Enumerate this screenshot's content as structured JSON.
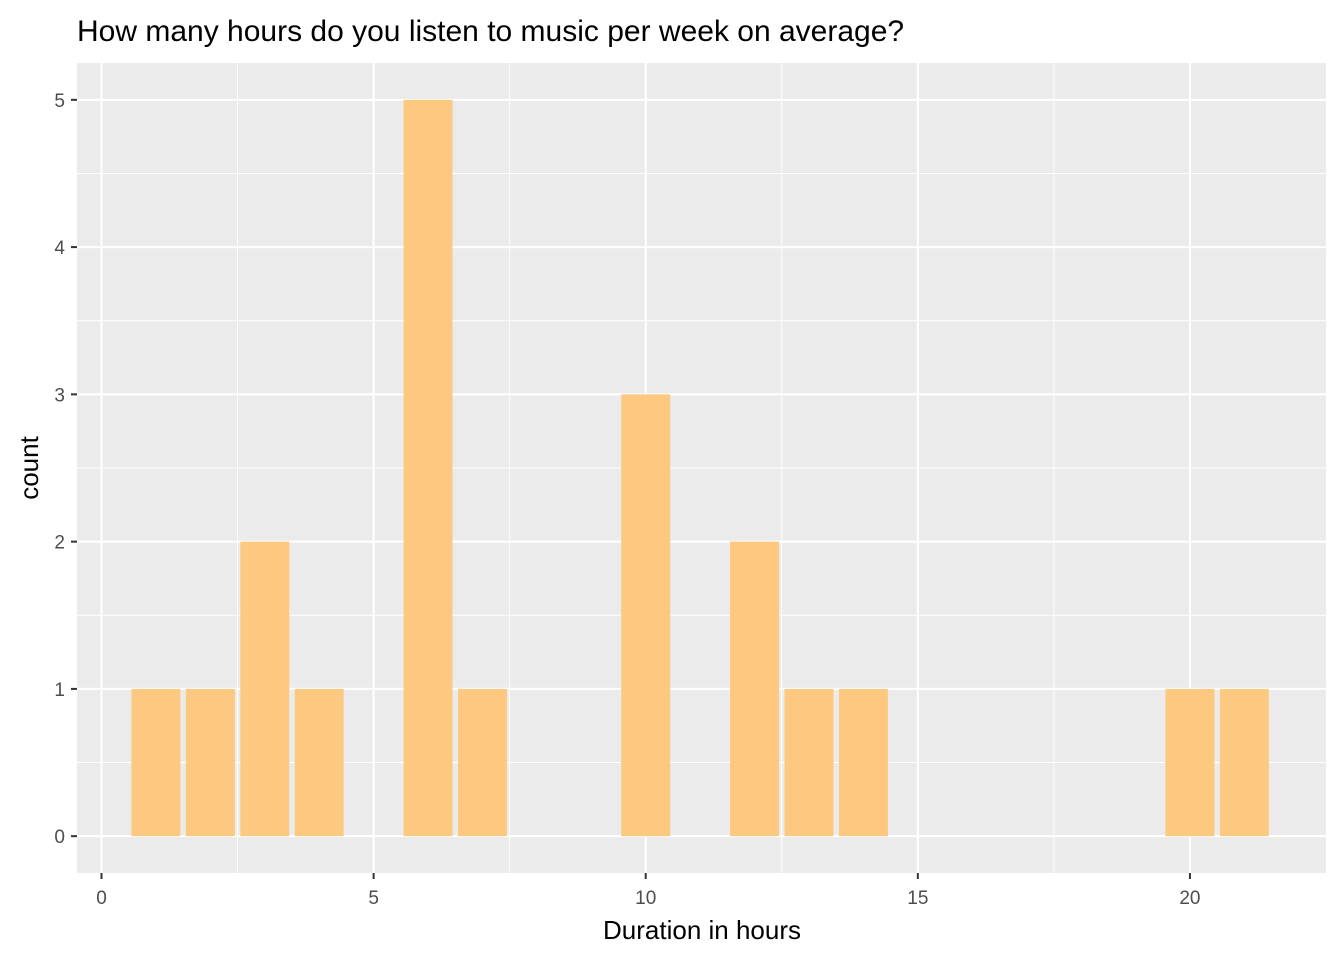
{
  "chart_data": {
    "type": "bar",
    "title": "How many hours do you listen to music per week on average?",
    "xlabel": "Duration in hours",
    "ylabel": "count",
    "xlim": [
      -0.45,
      22.5
    ],
    "ylim": [
      -0.25,
      5.25
    ],
    "x_ticks": [
      0,
      5,
      10,
      15,
      20
    ],
    "y_ticks": [
      0,
      1,
      2,
      3,
      4,
      5
    ],
    "x": [
      1,
      2,
      3,
      4,
      6,
      7,
      10,
      12,
      13,
      14,
      20,
      21
    ],
    "values": [
      1,
      1,
      2,
      1,
      5,
      1,
      3,
      2,
      1,
      1,
      1,
      1
    ],
    "bar_color": "#FDC980",
    "panel_color": "#EBEBEB",
    "grid_color": "#FFFFFF",
    "grid": true,
    "legend": "none"
  }
}
